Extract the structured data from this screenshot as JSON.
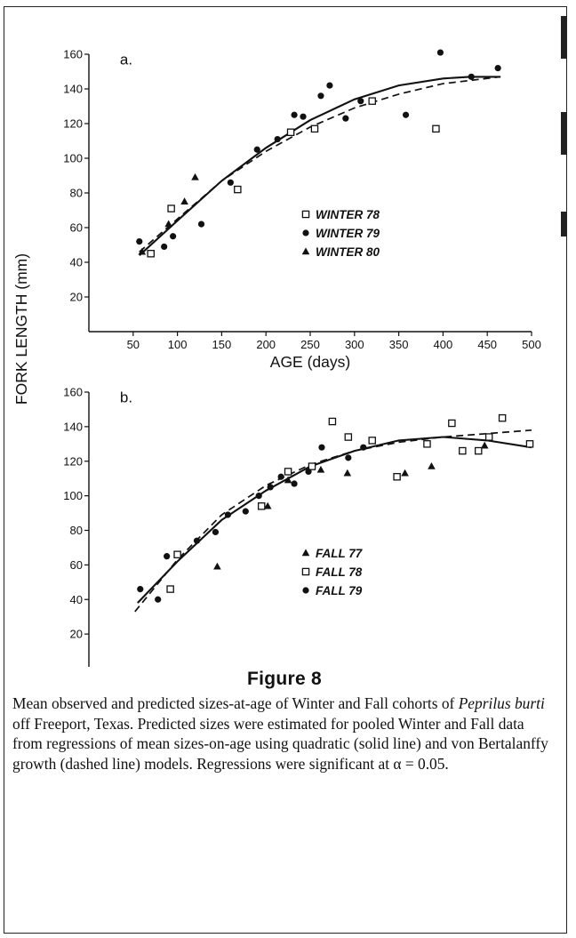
{
  "figure": {
    "title": "Figure 8",
    "caption_pre": "Mean observed and predicted sizes-at-age of Winter and Fall cohorts of ",
    "caption_species": "Peprilus burti",
    "caption_post": " off Freeport, Texas. Predicted sizes were estimated for pooled Winter and Fall data from regressions of mean sizes-on-age using quadratic (solid line) and von Bertalanffy growth (dashed line) models. Regressions were significant at α = 0.05."
  },
  "shared_ylabel": "FORK LENGTH (mm)",
  "chart_data": [
    {
      "type": "scatter",
      "panel_label": "a.",
      "xlabel": "AGE (days)",
      "ylabel": "",
      "xlim": [
        0,
        500
      ],
      "ylim": [
        0,
        160
      ],
      "xticks": [
        50,
        100,
        150,
        200,
        250,
        300,
        350,
        400,
        450,
        500
      ],
      "yticks": [
        20,
        40,
        60,
        80,
        100,
        120,
        140,
        160
      ],
      "legend_position": "center-right",
      "series": [
        {
          "name": "WINTER 78",
          "marker": "open-square",
          "points": [
            [
              70,
              45
            ],
            [
              93,
              71
            ],
            [
              168,
              82
            ],
            [
              228,
              115
            ],
            [
              255,
              117
            ],
            [
              320,
              133
            ],
            [
              392,
              117
            ]
          ]
        },
        {
          "name": "WINTER 79",
          "marker": "filled-circle",
          "points": [
            [
              57,
              52
            ],
            [
              85,
              49
            ],
            [
              95,
              55
            ],
            [
              127,
              62
            ],
            [
              160,
              86
            ],
            [
              190,
              105
            ],
            [
              213,
              111
            ],
            [
              232,
              125
            ],
            [
              242,
              124
            ],
            [
              262,
              136
            ],
            [
              272,
              142
            ],
            [
              290,
              123
            ],
            [
              307,
              133
            ],
            [
              358,
              125
            ],
            [
              397,
              161
            ],
            [
              432,
              147
            ],
            [
              462,
              152
            ]
          ]
        },
        {
          "name": "WINTER 80",
          "marker": "filled-triangle",
          "points": [
            [
              60,
              46
            ],
            [
              90,
              62
            ],
            [
              108,
              75
            ],
            [
              120,
              89
            ]
          ]
        }
      ],
      "fits": [
        {
          "model": "quadratic",
          "style": "solid",
          "points": [
            [
              57,
              44
            ],
            [
              100,
              64
            ],
            [
              150,
              87
            ],
            [
              200,
              106
            ],
            [
              250,
              122
            ],
            [
              300,
              134
            ],
            [
              350,
              142
            ],
            [
              400,
              146
            ],
            [
              430,
              147
            ],
            [
              465,
              147
            ]
          ]
        },
        {
          "model": "von Bertalanffy",
          "style": "dashed",
          "points": [
            [
              57,
              46
            ],
            [
              100,
              65
            ],
            [
              150,
              87
            ],
            [
              200,
              104
            ],
            [
              250,
              118
            ],
            [
              300,
              129
            ],
            [
              350,
              137
            ],
            [
              400,
              143
            ],
            [
              465,
              147
            ]
          ]
        }
      ]
    },
    {
      "type": "scatter",
      "panel_label": "b.",
      "xlabel": "AGE (days)",
      "ylabel": "",
      "xlim": [
        0,
        500
      ],
      "ylim": [
        0,
        160
      ],
      "xticks": [
        50,
        100,
        150,
        200,
        250,
        300,
        350,
        400,
        450,
        500
      ],
      "yticks": [
        20,
        40,
        60,
        80,
        100,
        120,
        140,
        160
      ],
      "legend_position": "center-right",
      "series": [
        {
          "name": "FALL 77",
          "marker": "filled-triangle",
          "points": [
            [
              145,
              59
            ],
            [
              202,
              94
            ],
            [
              225,
              109
            ],
            [
              262,
              115
            ],
            [
              292,
              113
            ],
            [
              357,
              113
            ],
            [
              387,
              117
            ],
            [
              447,
              129
            ]
          ]
        },
        {
          "name": "FALL 78",
          "marker": "open-square",
          "points": [
            [
              92,
              46
            ],
            [
              100,
              66
            ],
            [
              195,
              94
            ],
            [
              225,
              114
            ],
            [
              252,
              117
            ],
            [
              275,
              143
            ],
            [
              293,
              134
            ],
            [
              320,
              132
            ],
            [
              348,
              111
            ],
            [
              382,
              130
            ],
            [
              410,
              142
            ],
            [
              422,
              126
            ],
            [
              440,
              126
            ],
            [
              452,
              134
            ],
            [
              467,
              145
            ],
            [
              498,
              130
            ]
          ]
        },
        {
          "name": "FALL 79",
          "marker": "filled-circle",
          "points": [
            [
              58,
              46
            ],
            [
              78,
              40
            ],
            [
              88,
              65
            ],
            [
              122,
              74
            ],
            [
              143,
              79
            ],
            [
              157,
              89
            ],
            [
              177,
              91
            ],
            [
              192,
              100
            ],
            [
              205,
              105
            ],
            [
              217,
              111
            ],
            [
              232,
              107
            ],
            [
              248,
              114
            ],
            [
              263,
              128
            ],
            [
              293,
              122
            ],
            [
              310,
              128
            ]
          ]
        }
      ],
      "fits": [
        {
          "model": "quadratic",
          "style": "solid",
          "points": [
            [
              55,
              38
            ],
            [
              100,
              62
            ],
            [
              150,
              86
            ],
            [
              200,
              103
            ],
            [
              250,
              117
            ],
            [
              300,
              126
            ],
            [
              350,
              132
            ],
            [
              400,
              134
            ],
            [
              450,
              132
            ],
            [
              500,
              128
            ]
          ]
        },
        {
          "model": "von Bertalanffy",
          "style": "dashed",
          "points": [
            [
              52,
              33
            ],
            [
              100,
              63
            ],
            [
              150,
              89
            ],
            [
              200,
              106
            ],
            [
              250,
              118
            ],
            [
              300,
              126
            ],
            [
              350,
              131
            ],
            [
              400,
              134
            ],
            [
              450,
              136
            ],
            [
              500,
              138
            ]
          ]
        }
      ]
    }
  ]
}
